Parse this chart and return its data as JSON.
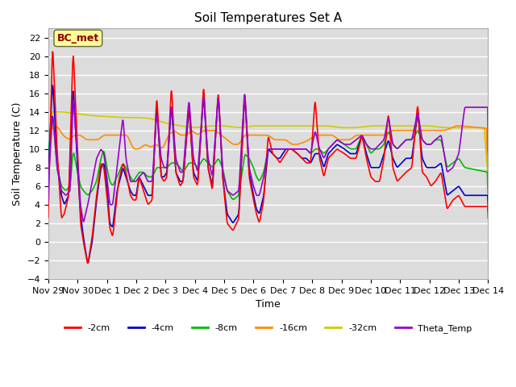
{
  "title": "Soil Temperatures Set A",
  "xlabel": "Time",
  "ylabel": "Soil Temperature (C)",
  "ylim": [
    -4,
    23
  ],
  "yticks": [
    -4,
    -2,
    0,
    2,
    4,
    6,
    8,
    10,
    12,
    14,
    16,
    18,
    20,
    22
  ],
  "x_labels": [
    "Nov 29",
    "Nov 30",
    "Dec 1",
    "Dec 2",
    "Dec 3",
    "Dec 4",
    "Dec 5",
    "Dec 6",
    "Dec 7",
    "Dec 8",
    "Dec 9",
    "Dec 10",
    "Dec 11",
    "Dec 12",
    "Dec 13",
    "Dec 14"
  ],
  "series": {
    "-2cm": {
      "color": "#FF0000",
      "lw": 1.2
    },
    "-4cm": {
      "color": "#0000CC",
      "lw": 1.2
    },
    "-8cm": {
      "color": "#00BB00",
      "lw": 1.2
    },
    "-16cm": {
      "color": "#FF8C00",
      "lw": 1.2
    },
    "-32cm": {
      "color": "#CCCC00",
      "lw": 1.2
    },
    "Theta_Temp": {
      "color": "#9900CC",
      "lw": 1.2
    }
  },
  "annotation_text": "BC_met",
  "annotation_color": "#8B0000",
  "annotation_bg": "#FFFF99",
  "background_color": "#DCDCDC",
  "grid_color": "#FFFFFF"
}
